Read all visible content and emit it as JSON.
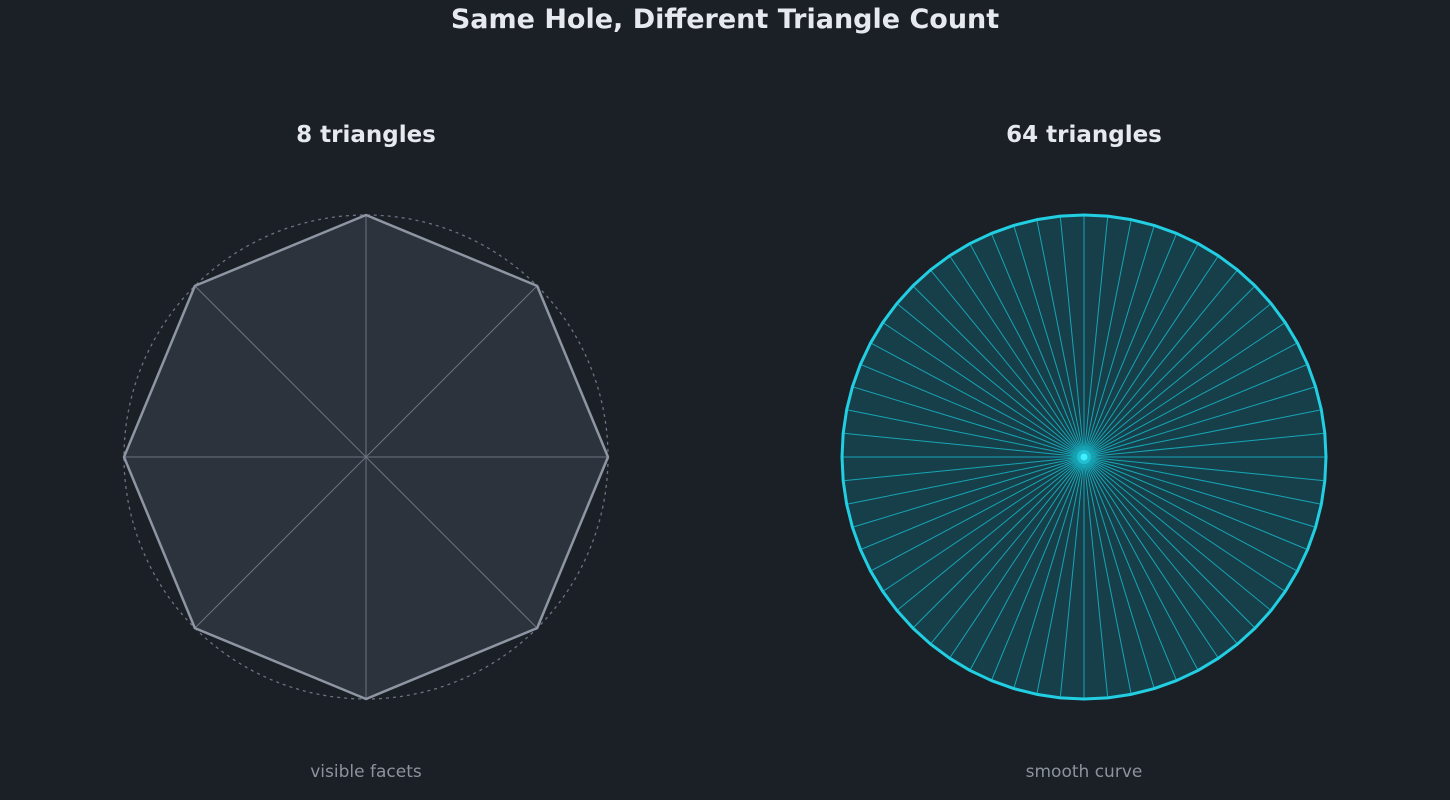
{
  "title": "Same Hole, Different Triangle Count",
  "panels": [
    {
      "title": "8 triangles",
      "caption": "visible facets",
      "triangle_count": 8,
      "fill_color": "#2d333c",
      "outline_color": "#8e95a3",
      "spoke_color": "#6c7380",
      "show_reference_circle": true,
      "reference_circle_color": "#6c7380"
    },
    {
      "title": "64 triangles",
      "caption": "smooth curve",
      "triangle_count": 64,
      "fill_color": "#163f49",
      "outline_color": "#22cfe2",
      "spoke_color": "#17a5b6",
      "show_reference_circle": false,
      "center_dot_color": "#3df0ff"
    }
  ],
  "colors": {
    "background": "#1b1f26",
    "title_text": "#e6e9ee",
    "caption_text": "#8d939c"
  }
}
